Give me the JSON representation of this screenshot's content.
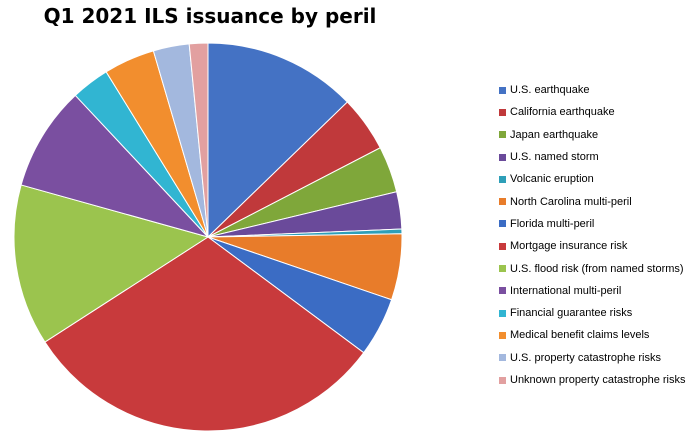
{
  "chart_data": {
    "type": "pie",
    "title": "Q1 2021 ILS issuance by peril",
    "legend_position": "right",
    "slices": [
      {
        "label": "U.S. earthquake",
        "value": 13.2,
        "color": "#4472C4"
      },
      {
        "label": "California earthquake",
        "value": 4.8,
        "color": "#C0393B"
      },
      {
        "label": "Japan earthquake",
        "value": 4.0,
        "color": "#7FA73A"
      },
      {
        "label": "U.S. named storm",
        "value": 3.2,
        "color": "#6A4A9A"
      },
      {
        "label": "Volcanic eruption",
        "value": 0.4,
        "color": "#2E9FB8"
      },
      {
        "label": "North Carolina multi-peril",
        "value": 5.7,
        "color": "#E87C2A"
      },
      {
        "label": "Florida multi-peril",
        "value": 5.1,
        "color": "#3B6CC4"
      },
      {
        "label": "Mortgage insurance risk",
        "value": 31.8,
        "color": "#C83A3C"
      },
      {
        "label": "U.S. flood risk (from named storms)",
        "value": 13.9,
        "color": "#9BC44E"
      },
      {
        "label": "International multi-peril",
        "value": 9.0,
        "color": "#7A4FA0"
      },
      {
        "label": "Financial guarantee risks",
        "value": 3.3,
        "color": "#31B5D2"
      },
      {
        "label": "Medical benefit claims levels",
        "value": 4.4,
        "color": "#F28E2E"
      },
      {
        "label": "U.S. property catastrophe risks",
        "value": 3.1,
        "color": "#A3B8DE"
      },
      {
        "label": "Unknown property catastrophe risks",
        "value": 1.6,
        "color": "#E2A0A0"
      }
    ]
  }
}
